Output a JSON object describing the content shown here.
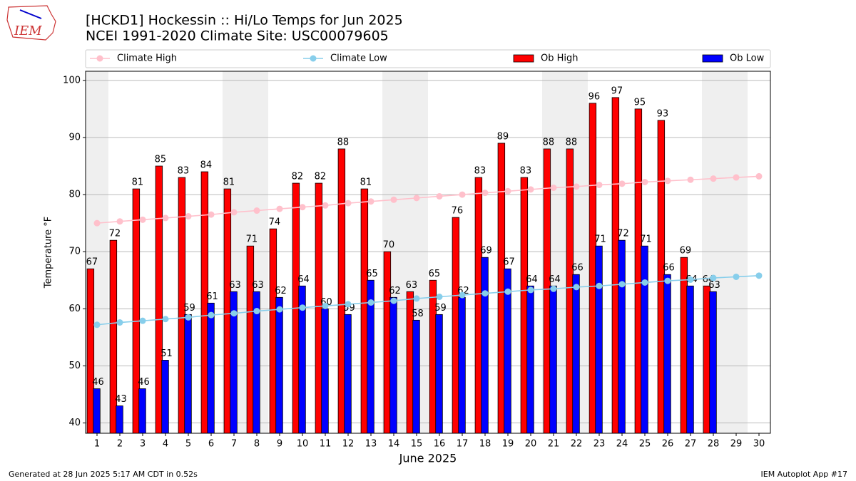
{
  "chart_data": {
    "type": "bar",
    "logo_text": "IEM",
    "title": "[HCKD1] Hockessin :: Hi/Lo Temps for Jun 2025",
    "subtitle": "NCEI 1991-2020 Climate Site: USC00079605",
    "x_label": "June 2025",
    "y_label": "Temperature °F",
    "footer_left": "Generated at 28 Jun 2025 5:17 AM CDT in 0.52s",
    "footer_right": "IEM Autoplot App #17",
    "x": [
      1,
      2,
      3,
      4,
      5,
      6,
      7,
      8,
      9,
      10,
      11,
      12,
      13,
      14,
      15,
      16,
      17,
      18,
      19,
      20,
      21,
      22,
      23,
      24,
      25,
      26,
      27,
      28,
      29,
      30
    ],
    "xlim": [
      0.5,
      30.5
    ],
    "ylim": [
      38.2,
      101.6
    ],
    "yticks": [
      40,
      50,
      60,
      70,
      80,
      90,
      100
    ],
    "grid": true,
    "shaded_days": [
      1,
      7,
      8,
      14,
      15,
      21,
      22,
      28,
      29
    ],
    "shade_color": "#efefef",
    "series": [
      {
        "name": "Climate High",
        "type": "line",
        "color": "#ffc0cb",
        "values": [
          75.0,
          75.3,
          75.6,
          75.9,
          76.2,
          76.5,
          76.9,
          77.2,
          77.5,
          77.8,
          78.1,
          78.5,
          78.8,
          79.1,
          79.4,
          79.7,
          80.0,
          80.3,
          80.6,
          80.9,
          81.2,
          81.4,
          81.7,
          81.9,
          82.2,
          82.4,
          82.6,
          82.8,
          83.0,
          83.2
        ]
      },
      {
        "name": "Climate Low",
        "type": "line",
        "color": "#87ceeb",
        "values": [
          57.2,
          57.6,
          57.9,
          58.2,
          58.5,
          58.9,
          59.2,
          59.6,
          59.9,
          60.2,
          60.5,
          60.8,
          61.1,
          61.4,
          61.8,
          62.1,
          62.4,
          62.7,
          63.0,
          63.3,
          63.5,
          63.8,
          64.0,
          64.3,
          64.6,
          64.9,
          65.1,
          65.4,
          65.6,
          65.8
        ]
      },
      {
        "name": "Ob High",
        "type": "bar",
        "color": "#ff0000",
        "values": [
          67,
          72,
          81,
          85,
          83,
          84,
          81,
          71,
          74,
          82,
          82,
          88,
          81,
          70,
          63,
          65,
          76,
          83,
          89,
          83,
          88,
          88,
          96,
          97,
          95,
          93,
          69,
          64,
          null,
          null
        ]
      },
      {
        "name": "Ob Low",
        "type": "bar",
        "color": "#0000ff",
        "values": [
          46,
          43,
          46,
          51,
          59,
          61,
          63,
          63,
          62,
          64,
          60,
          59,
          65,
          62,
          58,
          59,
          62,
          69,
          67,
          64,
          64,
          66,
          71,
          72,
          71,
          66,
          64,
          63,
          null,
          null
        ]
      }
    ]
  }
}
